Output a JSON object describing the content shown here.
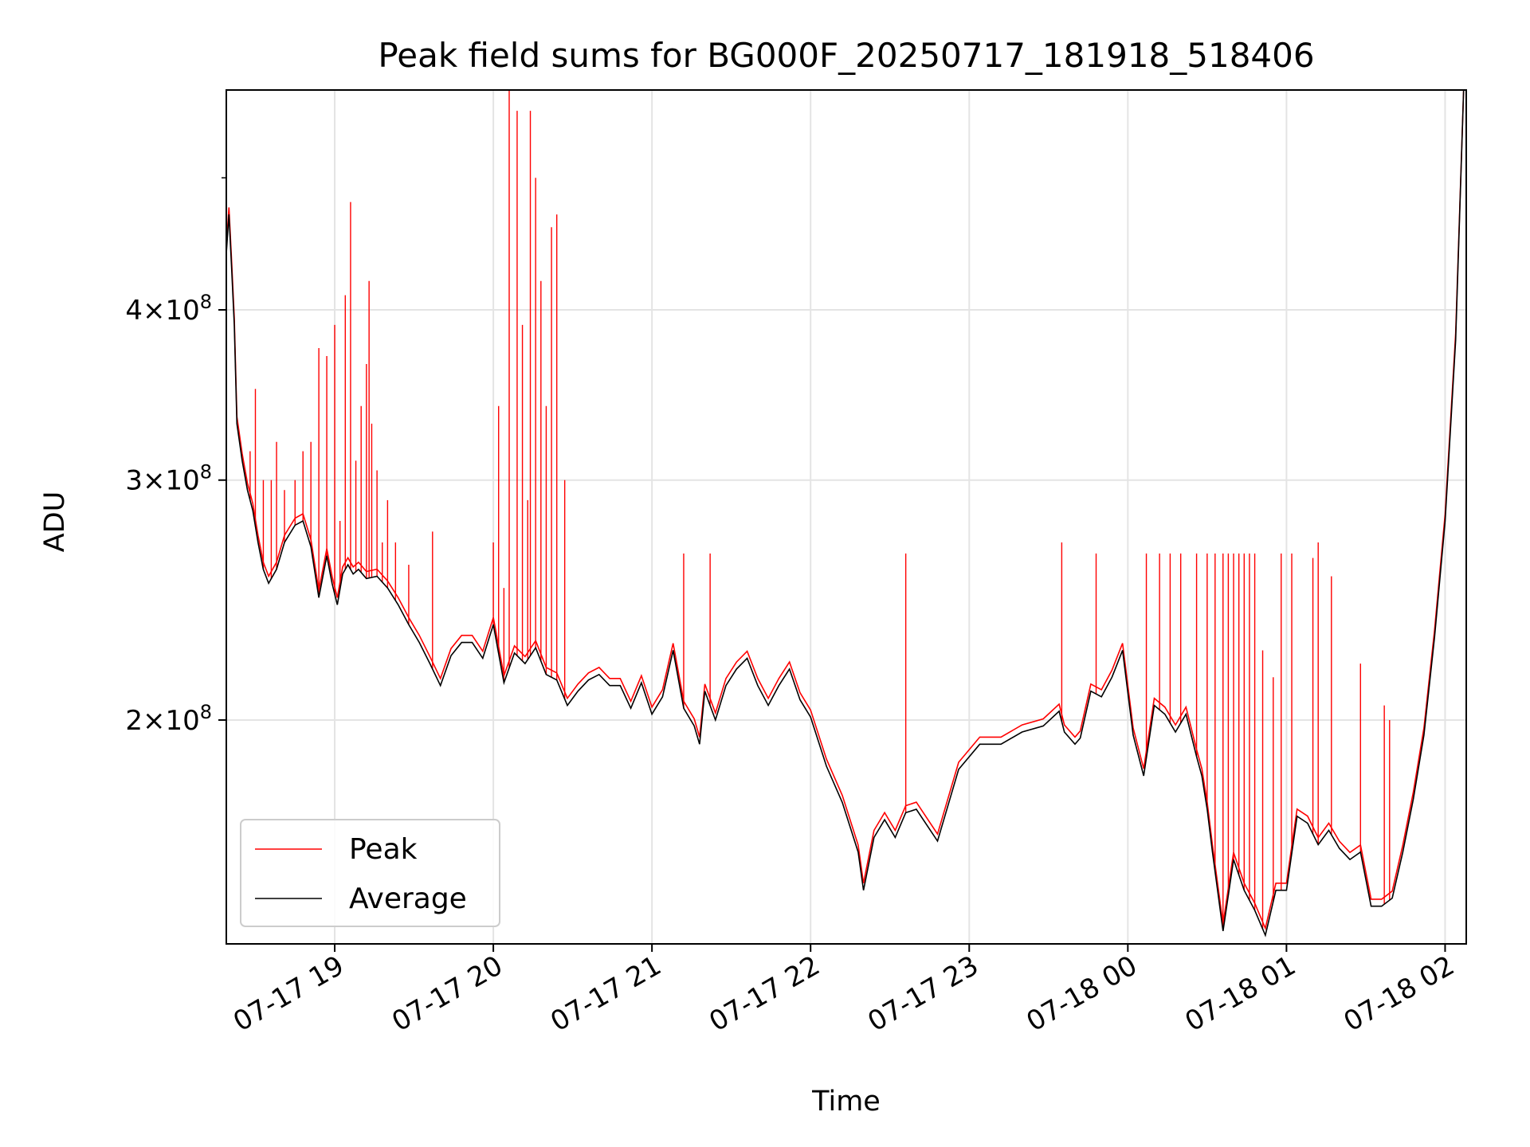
{
  "chart_data": {
    "type": "line",
    "title": "Peak field sums for BG000F_20250717_181918_518406",
    "xlabel": "Time",
    "ylabel": "ADU",
    "y_scale": "log",
    "ylim": [
      137000000,
      580000000
    ],
    "xlim": [
      "2025-07-17 18:19",
      "2025-07-18 02:08"
    ],
    "grid": true,
    "legend_position": "lower-left",
    "x_ticks": [
      {
        "t": "2025-07-17 19:00",
        "label": "07-17 19"
      },
      {
        "t": "2025-07-17 20:00",
        "label": "07-17 20"
      },
      {
        "t": "2025-07-17 21:00",
        "label": "07-17 21"
      },
      {
        "t": "2025-07-17 22:00",
        "label": "07-17 22"
      },
      {
        "t": "2025-07-17 23:00",
        "label": "07-17 23"
      },
      {
        "t": "2025-07-18 00:00",
        "label": "07-18 00"
      },
      {
        "t": "2025-07-18 01:00",
        "label": "07-18 01"
      },
      {
        "t": "2025-07-18 02:00",
        "label": "07-18 02"
      }
    ],
    "y_ticks": [
      {
        "value": 200000000,
        "base": "2",
        "exp": "8"
      },
      {
        "value": 300000000,
        "base": "3",
        "exp": "8"
      },
      {
        "value": 400000000,
        "base": "4",
        "exp": "8"
      }
    ],
    "series": [
      {
        "name": "Average",
        "color": "#000000",
        "x": [
          "2025-07-17 18:19",
          "2025-07-17 18:20",
          "2025-07-17 18:21",
          "2025-07-17 18:22",
          "2025-07-17 18:23",
          "2025-07-17 18:25",
          "2025-07-17 18:27",
          "2025-07-17 18:29",
          "2025-07-17 18:31",
          "2025-07-17 18:33",
          "2025-07-17 18:35",
          "2025-07-17 18:38",
          "2025-07-17 18:41",
          "2025-07-17 18:45",
          "2025-07-17 18:48",
          "2025-07-17 18:51",
          "2025-07-17 18:54",
          "2025-07-17 18:57",
          "2025-07-17 18:59",
          "2025-07-17 19:01",
          "2025-07-17 19:03",
          "2025-07-17 19:05",
          "2025-07-17 19:07",
          "2025-07-17 19:09",
          "2025-07-17 19:12",
          "2025-07-17 19:16",
          "2025-07-17 19:20",
          "2025-07-17 19:24",
          "2025-07-17 19:28",
          "2025-07-17 19:32",
          "2025-07-17 19:36",
          "2025-07-17 19:40",
          "2025-07-17 19:44",
          "2025-07-17 19:48",
          "2025-07-17 19:52",
          "2025-07-17 19:56",
          "2025-07-17 20:00",
          "2025-07-17 20:04",
          "2025-07-17 20:08",
          "2025-07-17 20:12",
          "2025-07-17 20:16",
          "2025-07-17 20:20",
          "2025-07-17 20:24",
          "2025-07-17 20:28",
          "2025-07-17 20:32",
          "2025-07-17 20:36",
          "2025-07-17 20:40",
          "2025-07-17 20:44",
          "2025-07-17 20:48",
          "2025-07-17 20:52",
          "2025-07-17 20:56",
          "2025-07-17 21:00",
          "2025-07-17 21:04",
          "2025-07-17 21:08",
          "2025-07-17 21:12",
          "2025-07-17 21:16",
          "2025-07-17 21:18",
          "2025-07-17 21:20",
          "2025-07-17 21:24",
          "2025-07-17 21:28",
          "2025-07-17 21:32",
          "2025-07-17 21:36",
          "2025-07-17 21:40",
          "2025-07-17 21:44",
          "2025-07-17 21:48",
          "2025-07-17 21:52",
          "2025-07-17 21:56",
          "2025-07-17 22:00",
          "2025-07-17 22:06",
          "2025-07-17 22:12",
          "2025-07-17 22:18",
          "2025-07-17 22:20",
          "2025-07-17 22:24",
          "2025-07-17 22:28",
          "2025-07-17 22:32",
          "2025-07-17 22:36",
          "2025-07-17 22:40",
          "2025-07-17 22:48",
          "2025-07-17 22:56",
          "2025-07-17 23:04",
          "2025-07-17 23:12",
          "2025-07-17 23:20",
          "2025-07-17 23:28",
          "2025-07-17 23:34",
          "2025-07-17 23:36",
          "2025-07-17 23:40",
          "2025-07-17 23:42",
          "2025-07-17 23:46",
          "2025-07-17 23:50",
          "2025-07-17 23:54",
          "2025-07-17 23:58",
          "2025-07-18 00:02",
          "2025-07-18 00:06",
          "2025-07-18 00:10",
          "2025-07-18 00:14",
          "2025-07-18 00:18",
          "2025-07-18 00:22",
          "2025-07-18 00:26",
          "2025-07-18 00:28",
          "2025-07-18 00:30",
          "2025-07-18 00:32",
          "2025-07-18 00:36",
          "2025-07-18 00:40",
          "2025-07-18 00:44",
          "2025-07-18 00:48",
          "2025-07-18 00:52",
          "2025-07-18 00:56",
          "2025-07-18 01:00",
          "2025-07-18 01:04",
          "2025-07-18 01:08",
          "2025-07-18 01:12",
          "2025-07-18 01:16",
          "2025-07-18 01:20",
          "2025-07-18 01:24",
          "2025-07-18 01:28",
          "2025-07-18 01:32",
          "2025-07-18 01:36",
          "2025-07-18 01:40",
          "2025-07-18 01:44",
          "2025-07-18 01:48",
          "2025-07-18 01:52",
          "2025-07-18 01:56",
          "2025-07-18 02:00",
          "2025-07-18 02:04",
          "2025-07-18 02:07"
        ],
        "y": [
          440000000,
          470000000,
          430000000,
          390000000,
          330000000,
          310000000,
          295000000,
          285000000,
          270000000,
          258000000,
          252000000,
          258000000,
          270000000,
          278000000,
          280000000,
          268000000,
          246000000,
          264000000,
          252000000,
          243000000,
          256000000,
          260000000,
          256000000,
          258000000,
          254000000,
          255000000,
          250000000,
          243000000,
          235000000,
          228000000,
          220000000,
          212000000,
          223000000,
          228000000,
          228000000,
          222000000,
          235000000,
          213000000,
          224000000,
          220000000,
          226000000,
          216000000,
          214000000,
          205000000,
          210000000,
          214000000,
          216000000,
          212000000,
          212000000,
          204000000,
          213000000,
          202000000,
          208000000,
          225000000,
          204000000,
          198000000,
          192000000,
          210000000,
          200000000,
          212000000,
          218000000,
          222000000,
          212000000,
          205000000,
          212000000,
          218000000,
          207000000,
          201000000,
          185000000,
          174000000,
          160000000,
          150000000,
          164000000,
          169000000,
          164000000,
          171000000,
          172000000,
          163000000,
          184000000,
          192000000,
          192000000,
          196000000,
          198000000,
          203000000,
          196000000,
          192000000,
          194000000,
          210000000,
          208000000,
          215000000,
          225000000,
          195000000,
          182000000,
          205000000,
          202000000,
          196000000,
          202000000,
          188000000,
          182000000,
          172000000,
          160000000,
          140000000,
          158000000,
          150000000,
          145000000,
          139000000,
          150000000,
          150000000,
          170000000,
          168000000,
          162000000,
          166000000,
          161000000,
          158000000,
          160000000,
          146000000,
          146000000,
          148000000,
          160000000,
          175000000,
          195000000,
          230000000,
          280000000,
          380000000,
          580000000
        ]
      },
      {
        "name": "Peak",
        "color": "#ff0000",
        "x": [
          "2025-07-17 18:28",
          "2025-07-17 18:30",
          "2025-07-17 18:33",
          "2025-07-17 18:36",
          "2025-07-17 18:38",
          "2025-07-17 18:41",
          "2025-07-17 18:45",
          "2025-07-17 18:48",
          "2025-07-17 18:51",
          "2025-07-17 18:54",
          "2025-07-17 18:57",
          "2025-07-17 19:00",
          "2025-07-17 19:02",
          "2025-07-17 19:04",
          "2025-07-17 19:06",
          "2025-07-17 19:08",
          "2025-07-17 19:10",
          "2025-07-17 19:12",
          "2025-07-17 19:13",
          "2025-07-17 19:14",
          "2025-07-17 19:16",
          "2025-07-17 19:18",
          "2025-07-17 19:20",
          "2025-07-17 19:23",
          "2025-07-17 19:28",
          "2025-07-17 19:37",
          "2025-07-17 20:00",
          "2025-07-17 20:02",
          "2025-07-17 20:04",
          "2025-07-17 20:06",
          "2025-07-17 20:09",
          "2025-07-17 20:11",
          "2025-07-17 20:13",
          "2025-07-17 20:14",
          "2025-07-17 20:16",
          "2025-07-17 20:18",
          "2025-07-17 20:20",
          "2025-07-17 20:22",
          "2025-07-17 20:24",
          "2025-07-17 20:27",
          "2025-07-17 21:12",
          "2025-07-17 21:22",
          "2025-07-17 22:36",
          "2025-07-17 23:35",
          "2025-07-17 23:48",
          "2025-07-18 00:07",
          "2025-07-18 00:12",
          "2025-07-18 00:16",
          "2025-07-18 00:20",
          "2025-07-18 00:26",
          "2025-07-18 00:30",
          "2025-07-18 00:33",
          "2025-07-18 00:36",
          "2025-07-18 00:38",
          "2025-07-18 00:40",
          "2025-07-18 00:42",
          "2025-07-18 00:44",
          "2025-07-18 00:46",
          "2025-07-18 00:48",
          "2025-07-18 00:51",
          "2025-07-18 00:55",
          "2025-07-18 00:58",
          "2025-07-18 01:02",
          "2025-07-18 01:10",
          "2025-07-18 01:12",
          "2025-07-18 01:17",
          "2025-07-18 01:28",
          "2025-07-18 01:37",
          "2025-07-18 01:39"
        ],
        "y": [
          315000000,
          350000000,
          300000000,
          300000000,
          320000000,
          295000000,
          300000000,
          315000000,
          320000000,
          375000000,
          370000000,
          390000000,
          280000000,
          410000000,
          480000000,
          310000000,
          340000000,
          365000000,
          420000000,
          330000000,
          305000000,
          270000000,
          290000000,
          270000000,
          260000000,
          275000000,
          270000000,
          340000000,
          250000000,
          580000000,
          560000000,
          390000000,
          290000000,
          560000000,
          500000000,
          420000000,
          340000000,
          460000000,
          470000000,
          300000000,
          265000000,
          265000000,
          265000000,
          270000000,
          265000000,
          265000000,
          265000000,
          265000000,
          265000000,
          265000000,
          265000000,
          265000000,
          265000000,
          265000000,
          265000000,
          265000000,
          265000000,
          265000000,
          265000000,
          225000000,
          215000000,
          265000000,
          265000000,
          263000000,
          270000000,
          255000000,
          220000000,
          205000000,
          200000000
        ]
      }
    ]
  }
}
